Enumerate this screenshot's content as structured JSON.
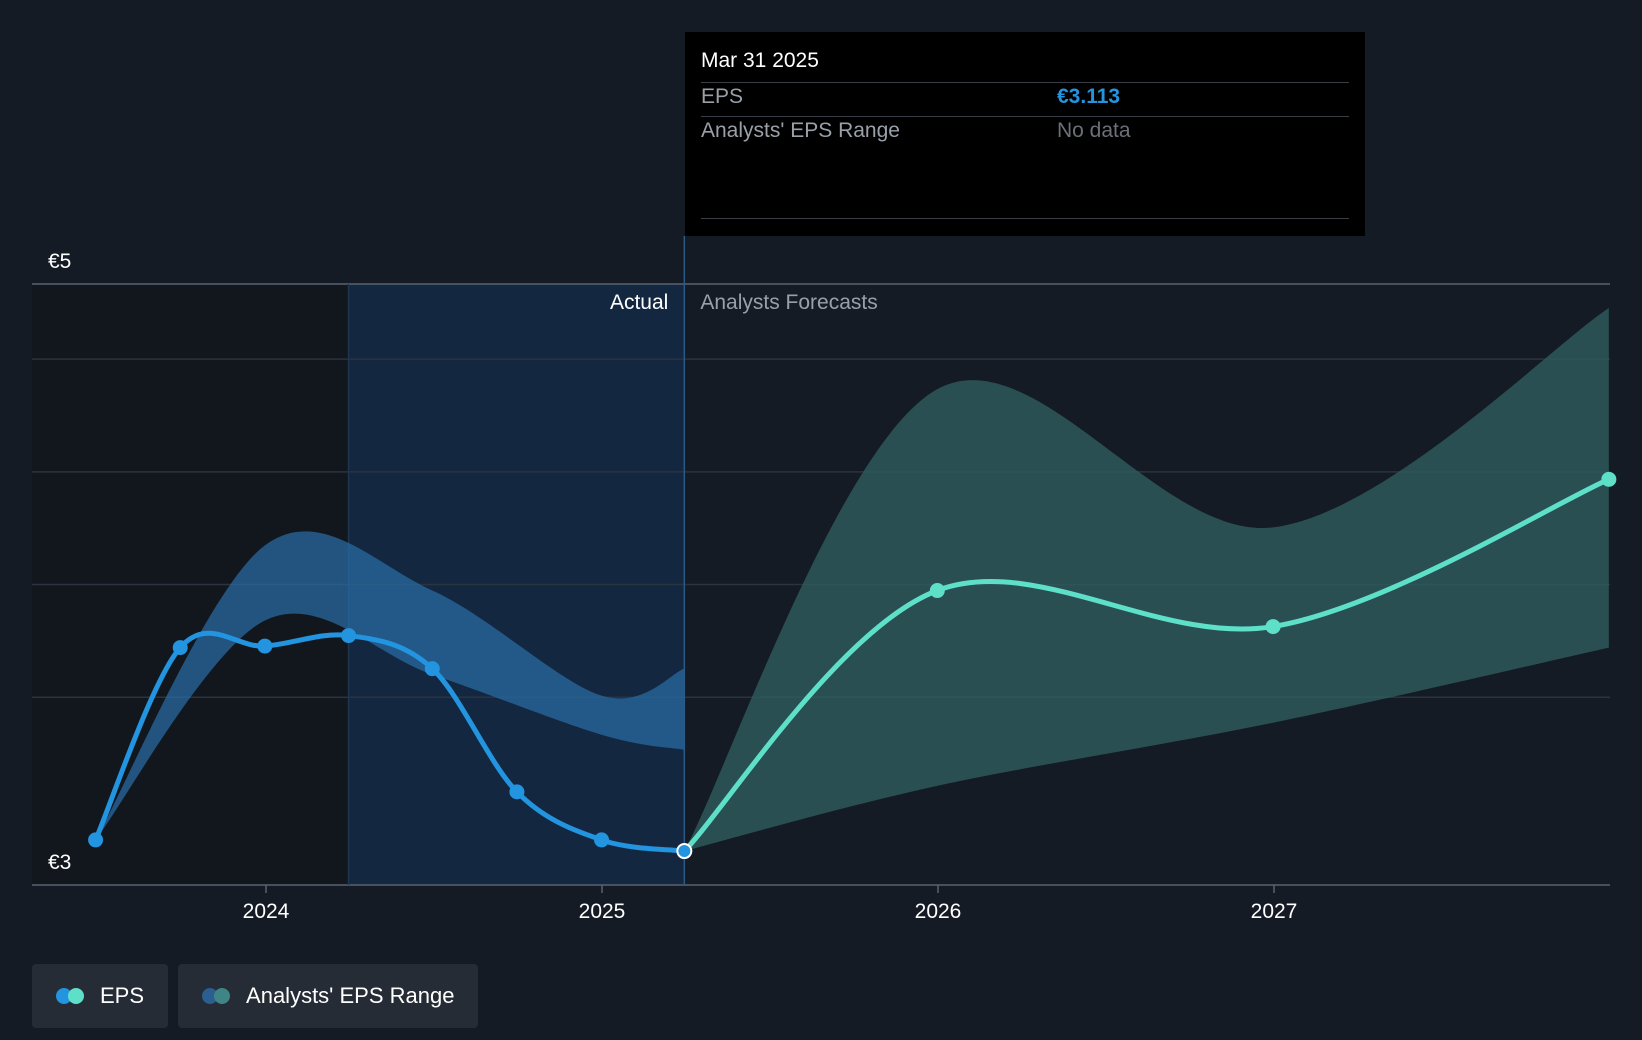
{
  "chart_data": {
    "type": "line",
    "y_tick_labels": [
      "€5",
      "€3"
    ],
    "ylim": [
      3,
      5
    ],
    "x_tick_labels": [
      "2024",
      "2025",
      "2026",
      "2027"
    ],
    "region_labels": {
      "actual": "Actual",
      "forecast": "Analysts Forecasts"
    },
    "series": [
      {
        "name": "EPS",
        "color": "#2394df",
        "x": [
          "2023-06-30",
          "2023-09-30",
          "2023-12-31",
          "2024-03-31",
          "2024-06-30",
          "2024-09-30",
          "2024-12-31",
          "2025-03-31"
        ],
        "values": [
          3.15,
          3.79,
          3.795,
          3.83,
          3.72,
          3.31,
          3.15,
          3.113
        ]
      },
      {
        "name": "EPS forecast",
        "color": "#5ee0c8",
        "x": [
          "2025-03-31",
          "2025-12-31",
          "2026-12-31",
          "2027-12-31"
        ],
        "values": [
          3.113,
          3.98,
          3.86,
          4.35
        ]
      }
    ],
    "range_actual": {
      "x": [
        "2023-06-30",
        "2023-12-31",
        "2024-06-30",
        "2024-12-31",
        "2025-03-31"
      ],
      "high": [
        3.15,
        4.13,
        3.98,
        3.63,
        3.72
      ],
      "low": [
        3.15,
        3.88,
        3.7,
        3.5,
        3.45
      ]
    },
    "range_forecast": {
      "x": [
        "2025-03-31",
        "2025-12-31",
        "2026-12-31",
        "2027-12-31"
      ],
      "high": [
        3.113,
        4.65,
        4.19,
        4.92
      ],
      "low": [
        3.113,
        3.33,
        3.54,
        3.79
      ]
    },
    "range_color_actual": "#2a6fa8",
    "range_color_forecast": "#2e5c5e",
    "grid": true
  },
  "tooltip": {
    "date": "Mar 31 2025",
    "eps_label": "EPS",
    "eps_value": "€3.113",
    "range_label": "Analysts' EPS Range",
    "range_value": "No data"
  },
  "legend": {
    "eps": "EPS",
    "range": "Analysts' EPS Range"
  },
  "colors": {
    "background": "#151b24",
    "eps": "#2394df",
    "forecast": "#5ee0c8"
  }
}
